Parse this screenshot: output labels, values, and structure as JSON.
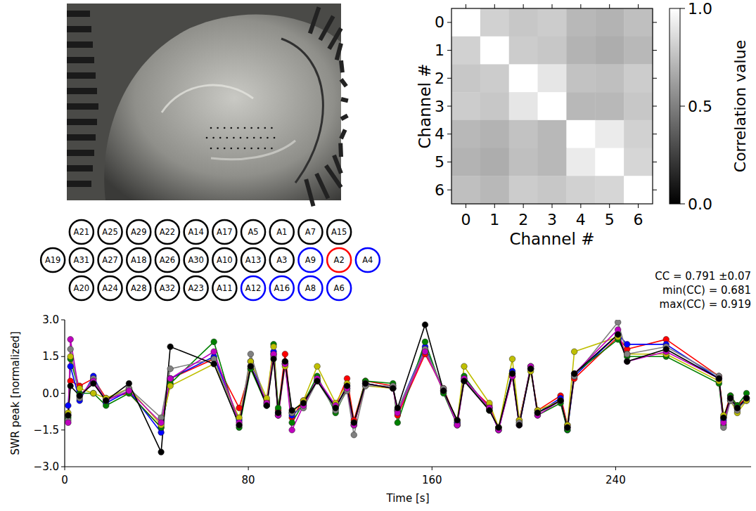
{
  "chart_data": [
    {
      "type": "heatmap",
      "x_label": "Channel #",
      "y_label": "Channel #",
      "xlim": [
        -0.5,
        6.5
      ],
      "ylim": [
        6.5,
        -0.5
      ],
      "xticks": [
        0,
        1,
        2,
        3,
        4,
        5,
        6
      ],
      "yticks": [
        0,
        1,
        2,
        3,
        4,
        5,
        6
      ],
      "values": [
        [
          1.0,
          0.82,
          0.78,
          0.8,
          0.72,
          0.7,
          0.75
        ],
        [
          0.82,
          1.0,
          0.8,
          0.78,
          0.7,
          0.68,
          0.72
        ],
        [
          0.78,
          0.8,
          1.0,
          0.9,
          0.76,
          0.75,
          0.8
        ],
        [
          0.8,
          0.78,
          0.9,
          1.0,
          0.72,
          0.72,
          0.78
        ],
        [
          0.72,
          0.7,
          0.76,
          0.72,
          1.0,
          0.92,
          0.82
        ],
        [
          0.7,
          0.68,
          0.75,
          0.72,
          0.92,
          1.0,
          0.84
        ],
        [
          0.75,
          0.72,
          0.8,
          0.78,
          0.82,
          0.84,
          1.0
        ]
      ],
      "colorbar_label": "Correlation value",
      "colorbar_range": [
        0,
        1
      ],
      "colorbar_ticks": [
        {
          "value": 0,
          "label": "0.0"
        },
        {
          "value": 0.5,
          "label": "0.5"
        },
        {
          "value": 1,
          "label": "1.0"
        }
      ]
    },
    {
      "type": "line",
      "x_label": "Time [s]",
      "y_label": "SWR peak [normalized]",
      "xlim": [
        0,
        299
      ],
      "xticks": [
        0,
        80,
        160,
        240
      ],
      "ylim": [
        -3,
        3
      ],
      "yticks": [
        {
          "value": -3,
          "label": "−3.0"
        },
        {
          "value": -1.5,
          "label": "−1.5"
        },
        {
          "value": 0,
          "label": "0.0"
        },
        {
          "value": 1.5,
          "label": "1.5"
        },
        {
          "value": 3,
          "label": "3.0"
        }
      ],
      "annotations": [
        "CC = 0.791 ±0.07",
        "min(CC) = 0.681",
        "max(CC) = 0.919"
      ],
      "x": [
        1.5,
        2.5,
        6.5,
        12.5,
        18,
        28,
        42,
        46,
        65,
        76,
        81,
        88,
        91,
        93,
        96,
        99,
        104,
        110,
        118,
        123,
        126,
        131,
        143,
        145,
        157,
        165,
        171,
        174,
        185,
        189,
        195,
        198,
        203,
        206,
        216,
        219,
        222,
        241,
        245,
        262,
        285,
        287,
        290,
        293,
        297
      ],
      "series": [
        {
          "color": "#ff0000",
          "marker": "circle",
          "values": [
            -0.9,
            0.5,
            0.3,
            0.6,
            -0.2,
            0.0,
            -1.4,
            0.6,
            1.4,
            -0.6,
            1.0,
            -0.3,
            1.6,
            -0.7,
            1.6,
            -1.0,
            -0.3,
            0.5,
            -0.5,
            0.6,
            -1.1,
            0.5,
            0.3,
            -0.9,
            1.6,
            0.2,
            -1.2,
            0.5,
            -0.5,
            -1.4,
            0.7,
            -1.1,
            1.0,
            -0.7,
            -0.1,
            -1.3,
            0.6,
            2.3,
            1.8,
            2.2,
            0.7,
            -1.0,
            -0.1,
            -0.5,
            -0.2
          ]
        },
        {
          "color": "#0000ff",
          "marker": "circle",
          "values": [
            -0.5,
            1.1,
            -0.3,
            0.7,
            -0.4,
            0.1,
            -1.6,
            0.6,
            1.5,
            -1.1,
            1.3,
            -0.4,
            1.7,
            -0.8,
            1.2,
            -0.9,
            -0.5,
            0.6,
            -0.6,
            0.3,
            -1.3,
            0.4,
            0.2,
            -0.7,
            1.9,
            0.1,
            -1.2,
            0.6,
            -0.6,
            -1.5,
            0.9,
            -1.3,
            1.0,
            -0.8,
            -0.2,
            -1.5,
            0.7,
            2.4,
            2.0,
            2.0,
            0.6,
            -1.1,
            -0.2,
            -0.6,
            -0.3
          ]
        },
        {
          "color": "#008000",
          "marker": "circle",
          "values": [
            -1.0,
            1.4,
            0.0,
            0.0,
            -0.5,
            0.0,
            -1.4,
            0.4,
            2.1,
            -1.4,
            1.0,
            -0.5,
            2.0,
            -0.6,
            1.2,
            -1.2,
            -0.4,
            0.7,
            -0.8,
            0.2,
            -1.2,
            0.5,
            0.4,
            -1.2,
            2.1,
            0.0,
            -1.3,
            0.7,
            -0.7,
            -1.4,
            0.8,
            -1.2,
            1.1,
            -0.9,
            -0.4,
            -1.5,
            0.8,
            2.2,
            1.5,
            1.5,
            0.4,
            -1.3,
            -0.1,
            -0.5,
            0.0
          ]
        },
        {
          "color": "#bfbf00",
          "marker": "circle",
          "values": [
            -0.8,
            1.5,
            0.2,
            0.0,
            -0.2,
            0.2,
            -1.3,
            0.3,
            1.2,
            -1.0,
            1.3,
            -0.2,
            1.9,
            -0.9,
            1.1,
            -0.8,
            -0.3,
            1.1,
            -0.4,
            0.4,
            -1.3,
            0.3,
            0.2,
            -0.7,
            1.7,
            0.1,
            -1.1,
            1.1,
            -0.4,
            -1.4,
            1.4,
            -1.1,
            0.9,
            -0.7,
            -0.3,
            -1.3,
            1.7,
            2.3,
            1.6,
            1.6,
            0.5,
            -0.9,
            -0.3,
            -0.8,
            -0.3
          ]
        },
        {
          "color": "#808080",
          "marker": "circle",
          "values": [
            -1.1,
            1.8,
            -0.2,
            0.6,
            -0.3,
            0.2,
            -1.0,
            1.0,
            1.4,
            -1.3,
            1.6,
            -0.5,
            1.5,
            -0.9,
            1.3,
            -0.8,
            -0.6,
            0.5,
            -0.7,
            0.1,
            -1.7,
            0.3,
            0.3,
            -0.7,
            1.8,
            0.2,
            -1.3,
            0.5,
            -0.6,
            -1.5,
            0.7,
            -1.2,
            1.0,
            -0.8,
            -0.3,
            -1.4,
            0.7,
            2.9,
            1.6,
            1.9,
            0.7,
            -1.4,
            -0.3,
            -0.7,
            -0.2
          ]
        },
        {
          "color": "#bf00bf",
          "marker": "circle",
          "values": [
            -1.2,
            2.2,
            -0.1,
            0.5,
            -0.3,
            0.1,
            -1.2,
            0.6,
            1.7,
            -1.2,
            1.1,
            -0.4,
            1.6,
            -0.9,
            1.2,
            -1.5,
            -0.5,
            0.6,
            -0.5,
            0.2,
            -1.3,
            0.4,
            0.2,
            -0.8,
            1.7,
            0.1,
            -1.3,
            0.6,
            -0.6,
            -1.5,
            0.7,
            -1.3,
            1.1,
            -0.9,
            -0.3,
            -1.4,
            0.8,
            2.6,
            1.3,
            1.7,
            0.6,
            -1.2,
            -0.2,
            -0.6,
            -0.2
          ]
        },
        {
          "color": "#000000",
          "marker": "circle",
          "values": [
            -0.9,
            0.3,
            -0.1,
            0.4,
            -0.3,
            0.4,
            -2.4,
            1.9,
            1.2,
            -1.3,
            1.1,
            -0.5,
            1.4,
            -0.8,
            1.3,
            -0.7,
            -0.4,
            0.5,
            -0.6,
            0.3,
            -1.2,
            0.4,
            0.2,
            -0.6,
            2.8,
            0.1,
            -1.1,
            0.5,
            -0.7,
            -1.4,
            0.8,
            -1.3,
            1.0,
            -0.8,
            -0.3,
            -1.4,
            0.8,
            2.4,
            1.3,
            1.8,
            0.6,
            -1.0,
            -0.2,
            -0.6,
            -0.2
          ]
        }
      ]
    }
  ],
  "electrode_map": {
    "rows": [
      [
        {
          "label": "A21",
          "color": "black"
        },
        {
          "label": "A25",
          "color": "black"
        },
        {
          "label": "A29",
          "color": "black"
        },
        {
          "label": "A22",
          "color": "black"
        },
        {
          "label": "A14",
          "color": "black"
        },
        {
          "label": "A17",
          "color": "black"
        },
        {
          "label": "A5",
          "color": "black"
        },
        {
          "label": "A1",
          "color": "black"
        },
        {
          "label": "A7",
          "color": "black"
        },
        {
          "label": "A15",
          "color": "black"
        }
      ],
      [
        {
          "label": "A19",
          "color": "black"
        },
        {
          "label": "A31",
          "color": "black"
        },
        {
          "label": "A27",
          "color": "black"
        },
        {
          "label": "A18",
          "color": "black"
        },
        {
          "label": "A26",
          "color": "black"
        },
        {
          "label": "A30",
          "color": "black"
        },
        {
          "label": "A10",
          "color": "black"
        },
        {
          "label": "A13",
          "color": "black"
        },
        {
          "label": "A3",
          "color": "black"
        },
        {
          "label": "A9",
          "color": "blue"
        },
        {
          "label": "A2",
          "color": "red"
        },
        {
          "label": "A4",
          "color": "blue"
        }
      ],
      [
        {
          "label": "A20",
          "color": "black"
        },
        {
          "label": "A24",
          "color": "black"
        },
        {
          "label": "A28",
          "color": "black"
        },
        {
          "label": "A32",
          "color": "black"
        },
        {
          "label": "A23",
          "color": "black"
        },
        {
          "label": "A11",
          "color": "black"
        },
        {
          "label": "A12",
          "color": "blue"
        },
        {
          "label": "A16",
          "color": "blue"
        },
        {
          "label": "A8",
          "color": "blue"
        },
        {
          "label": "A6",
          "color": "blue"
        }
      ]
    ]
  }
}
